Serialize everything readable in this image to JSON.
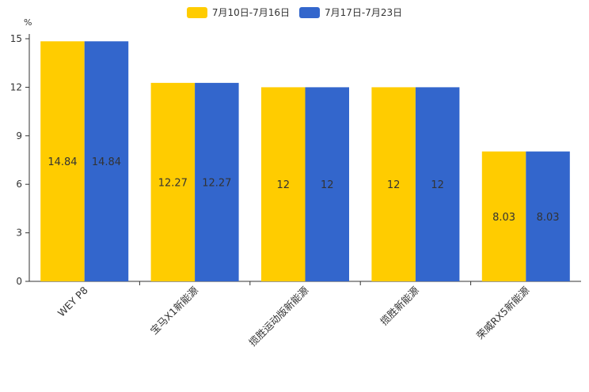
{
  "chart_data": {
    "type": "bar",
    "unit": "%",
    "categories": [
      "WEY P8",
      "宝马X1新能源",
      "揽胜运动版新能源",
      "揽胜新能源",
      "荣威RX5新能源"
    ],
    "series": [
      {
        "name": "7月10日-7月16日",
        "color": "#FFCC00",
        "values": [
          14.84,
          12.27,
          12,
          12,
          8.03
        ],
        "labels": [
          "14.84",
          "12.27",
          "12",
          "12",
          "8.03"
        ]
      },
      {
        "name": "7月17日-7月23日",
        "color": "#3366CC",
        "values": [
          14.84,
          12.27,
          12,
          12,
          8.03
        ],
        "labels": [
          "14.84",
          "12.27",
          "12",
          "12",
          "8.03"
        ]
      }
    ],
    "ylim": [
      0,
      15
    ],
    "yticks": [
      "0",
      "3",
      "6",
      "9",
      "12",
      "15"
    ],
    "legend_position": "top-center",
    "grid": false
  }
}
